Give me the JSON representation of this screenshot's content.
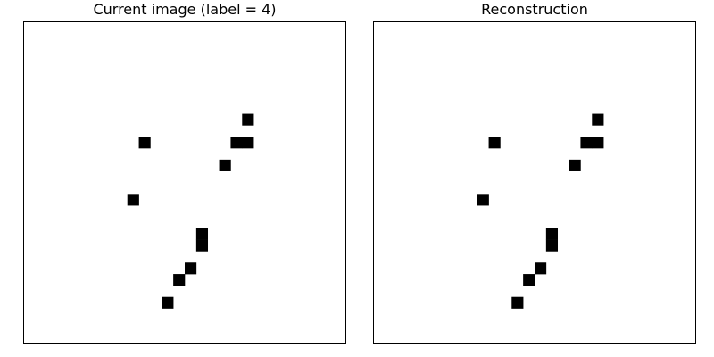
{
  "chart_data": [
    {
      "type": "heatmap",
      "title": "Current image (label = 4)",
      "grid_size": [
        28,
        28
      ],
      "colormap": "binary",
      "axes_visible": false,
      "filled_cells": [
        {
          "row": 8,
          "col": 19
        },
        {
          "row": 10,
          "col": 10
        },
        {
          "row": 10,
          "col": 18
        },
        {
          "row": 10,
          "col": 19
        },
        {
          "row": 12,
          "col": 17
        },
        {
          "row": 15,
          "col": 9
        },
        {
          "row": 18,
          "col": 15
        },
        {
          "row": 19,
          "col": 15
        },
        {
          "row": 21,
          "col": 14
        },
        {
          "row": 22,
          "col": 13
        },
        {
          "row": 24,
          "col": 12
        }
      ]
    },
    {
      "type": "heatmap",
      "title": "Reconstruction",
      "grid_size": [
        28,
        28
      ],
      "colormap": "binary",
      "axes_visible": false,
      "filled_cells": [
        {
          "row": 8,
          "col": 19
        },
        {
          "row": 10,
          "col": 10
        },
        {
          "row": 10,
          "col": 18
        },
        {
          "row": 10,
          "col": 19
        },
        {
          "row": 12,
          "col": 17
        },
        {
          "row": 15,
          "col": 9
        },
        {
          "row": 18,
          "col": 15
        },
        {
          "row": 19,
          "col": 15
        },
        {
          "row": 21,
          "col": 14
        },
        {
          "row": 22,
          "col": 13
        },
        {
          "row": 24,
          "col": 12
        }
      ]
    }
  ],
  "colors": {
    "filled": "#000000",
    "empty": "#ffffff",
    "frame": "#000000"
  }
}
